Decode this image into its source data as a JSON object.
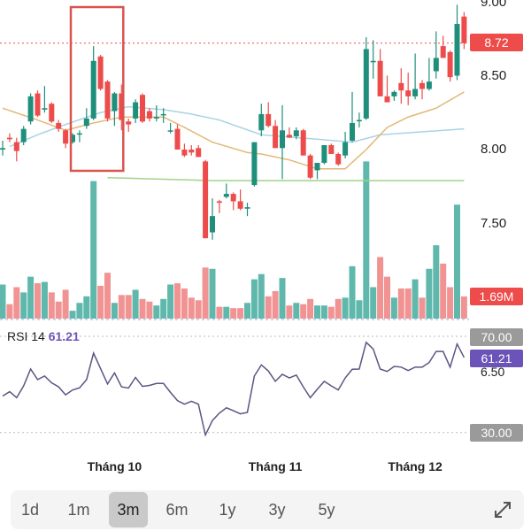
{
  "colors": {
    "up": "#1f8f7c",
    "down": "#ee4b4b",
    "vol_up": "#5fb8ab",
    "vol_down": "#f29393",
    "ma_fast": "#e3b878",
    "ma_slow": "#a9d3e6",
    "ma_long": "#9fd38a",
    "rsi": "#5b5582",
    "rsi_accent": "#6b53b8",
    "highlight_box": "#d9534f"
  },
  "chart_data": {
    "type": "candlestick",
    "price_axis": {
      "ticks": [
        "9.00",
        "8.50",
        "8.00",
        "7.50"
      ],
      "range": [
        7.3,
        9.0
      ]
    },
    "last_price": "8.72",
    "last_volume": "1.69M",
    "candles": [
      [
        8.0,
        8.06,
        7.96,
        8.01
      ],
      [
        8.08,
        8.11,
        8.05,
        8.07
      ],
      [
        8.05,
        8.08,
        7.92,
        7.99
      ],
      [
        8.05,
        8.16,
        8.03,
        8.14
      ],
      [
        8.19,
        8.38,
        8.17,
        8.36
      ],
      [
        8.38,
        8.4,
        8.22,
        8.23
      ],
      [
        8.27,
        8.43,
        8.25,
        8.28
      ],
      [
        8.31,
        8.32,
        8.18,
        8.19
      ],
      [
        8.18,
        8.2,
        8.12,
        8.14
      ],
      [
        8.13,
        8.14,
        8.01,
        8.04
      ],
      [
        8.05,
        8.11,
        8.04,
        8.1
      ],
      [
        8.11,
        8.13,
        8.05,
        8.11
      ],
      [
        8.16,
        8.28,
        8.14,
        8.21
      ],
      [
        8.21,
        8.7,
        8.2,
        8.6
      ],
      [
        8.63,
        8.64,
        8.4,
        8.41
      ],
      [
        8.46,
        8.47,
        8.19,
        8.21
      ],
      [
        8.26,
        8.39,
        8.16,
        8.38
      ],
      [
        8.38,
        8.44,
        8.13,
        8.2
      ],
      [
        8.19,
        8.21,
        8.12,
        8.17
      ],
      [
        8.21,
        8.34,
        8.18,
        8.32
      ],
      [
        8.37,
        8.38,
        8.18,
        8.19
      ],
      [
        8.26,
        8.28,
        8.19,
        8.21
      ],
      [
        8.21,
        8.3,
        8.19,
        8.22
      ],
      [
        8.24,
        8.28,
        8.18,
        8.24
      ],
      [
        8.13,
        8.18,
        8.11,
        8.13
      ],
      [
        8.14,
        8.17,
        8.0,
        8.0
      ],
      [
        8.0,
        8.04,
        7.95,
        7.96
      ],
      [
        8.0,
        8.03,
        7.96,
        7.98
      ],
      [
        8.01,
        8.03,
        7.95,
        7.95
      ],
      [
        7.92,
        7.93,
        7.4,
        7.4
      ],
      [
        7.44,
        7.67,
        7.39,
        7.55
      ],
      [
        7.65,
        7.66,
        7.57,
        7.64
      ],
      [
        7.68,
        7.77,
        7.67,
        7.7
      ],
      [
        7.7,
        7.71,
        7.59,
        7.65
      ],
      [
        7.65,
        7.73,
        7.59,
        7.6
      ],
      [
        7.6,
        7.64,
        7.55,
        7.61
      ],
      [
        7.76,
        8.05,
        7.75,
        8.05
      ],
      [
        8.13,
        8.31,
        8.09,
        8.24
      ],
      [
        8.24,
        8.32,
        8.15,
        8.16
      ],
      [
        8.16,
        8.2,
        8.01,
        8.01
      ],
      [
        8.01,
        8.3,
        7.8,
        8.13
      ],
      [
        8.1,
        8.15,
        8.08,
        8.08
      ],
      [
        8.09,
        8.15,
        8.07,
        8.13
      ],
      [
        8.13,
        8.14,
        7.96,
        7.96
      ],
      [
        7.96,
        7.97,
        7.8,
        7.81
      ],
      [
        7.86,
        7.91,
        7.8,
        7.91
      ],
      [
        7.91,
        8.03,
        7.9,
        8.03
      ],
      [
        8.03,
        8.04,
        7.97,
        7.97
      ],
      [
        7.97,
        7.98,
        7.89,
        7.9
      ],
      [
        7.96,
        8.12,
        7.94,
        8.05
      ],
      [
        8.06,
        8.39,
        8.05,
        8.18
      ],
      [
        8.2,
        8.25,
        8.15,
        8.2
      ],
      [
        8.21,
        8.76,
        8.2,
        8.68
      ],
      [
        8.6,
        8.74,
        8.48,
        8.6
      ],
      [
        8.6,
        8.68,
        8.36,
        8.36
      ],
      [
        8.36,
        8.5,
        8.32,
        8.32
      ],
      [
        8.36,
        8.4,
        8.33,
        8.39
      ],
      [
        8.45,
        8.55,
        8.31,
        8.4
      ],
      [
        8.4,
        8.52,
        8.3,
        8.36
      ],
      [
        8.36,
        8.65,
        8.34,
        8.41
      ],
      [
        8.45,
        8.47,
        8.34,
        8.41
      ],
      [
        8.41,
        8.62,
        8.4,
        8.46
      ],
      [
        8.53,
        8.8,
        8.48,
        8.62
      ],
      [
        8.7,
        8.77,
        8.62,
        8.62
      ],
      [
        8.66,
        8.67,
        8.46,
        8.49
      ],
      [
        8.5,
        8.98,
        8.47,
        8.85
      ],
      [
        8.9,
        8.93,
        8.68,
        8.72
      ]
    ],
    "volume_millions": [
      2.6,
      1.1,
      2.4,
      2.0,
      3.2,
      2.7,
      2.8,
      2.0,
      1.3,
      2.2,
      0.6,
      1.2,
      1.7,
      10.5,
      2.5,
      3.5,
      1.2,
      1.8,
      1.8,
      2.2,
      1.5,
      1.3,
      1.0,
      1.5,
      2.6,
      2.7,
      2.3,
      1.6,
      1.4,
      3.9,
      3.8,
      0.9,
      0.9,
      0.8,
      0.8,
      1.2,
      3.0,
      3.4,
      1.7,
      2.1,
      3.1,
      1.0,
      1.2,
      1.1,
      1.5,
      1.0,
      1.0,
      0.9,
      1.5,
      1.6,
      4.0,
      1.4,
      12.0,
      2.4,
      4.7,
      3.2,
      1.6,
      2.3,
      2.3,
      3.0,
      1.6,
      3.8,
      5.6,
      4.2,
      2.4,
      8.7,
      1.69
    ],
    "ma_fast_keyframes": [
      [
        0,
        8.28
      ],
      [
        5,
        8.2
      ],
      [
        9,
        8.13
      ],
      [
        13,
        8.18
      ],
      [
        17,
        8.22
      ],
      [
        23,
        8.22
      ],
      [
        26,
        8.15
      ],
      [
        30,
        8.05
      ],
      [
        35,
        7.98
      ],
      [
        37,
        7.97
      ],
      [
        41,
        7.93
      ],
      [
        45,
        7.87
      ],
      [
        49,
        7.87
      ],
      [
        52,
        8.0
      ],
      [
        55,
        8.15
      ],
      [
        58,
        8.22
      ],
      [
        62,
        8.28
      ],
      [
        66,
        8.39
      ]
    ],
    "ma_slow_keyframes": [
      [
        1,
        8.02
      ],
      [
        5,
        8.1
      ],
      [
        9,
        8.17
      ],
      [
        14,
        8.25
      ],
      [
        18,
        8.29
      ],
      [
        23,
        8.27
      ],
      [
        27,
        8.24
      ],
      [
        31,
        8.2
      ],
      [
        37,
        8.1
      ],
      [
        45,
        8.07
      ],
      [
        50,
        8.05
      ],
      [
        54,
        8.1
      ],
      [
        60,
        8.12
      ],
      [
        66,
        8.14
      ]
    ],
    "ma_long_keyframes": [
      [
        15,
        7.81
      ],
      [
        30,
        7.79
      ],
      [
        40,
        7.79
      ],
      [
        66,
        7.79
      ]
    ],
    "highlight_range": [
      10,
      17
    ],
    "x_labels": [
      "Tháng 10",
      "Tháng 11",
      "Tháng 12"
    ],
    "x_label_index": [
      16,
      39,
      59
    ],
    "rsi": {
      "title": "RSI 14",
      "value": "61.21",
      "levels": [
        "70.00",
        "30.00"
      ],
      "extra_label": "6.50",
      "values": [
        45.2,
        47.0,
        44.5,
        49.4,
        56.4,
        52.0,
        53.5,
        50.7,
        49.0,
        45.7,
        47.7,
        48.6,
        52.0,
        63.0,
        56.6,
        50.2,
        54.8,
        49.0,
        48.5,
        52.9,
        49.2,
        49.6,
        50.4,
        50.4,
        46.7,
        43.3,
        41.8,
        43.0,
        41.8,
        29.0,
        35.0,
        38.1,
        40.3,
        39.1,
        37.8,
        38.4,
        53.5,
        58.1,
        55.6,
        51.3,
        54.2,
        52.7,
        53.9,
        49.0,
        44.5,
        48.0,
        51.3,
        49.4,
        47.7,
        52.7,
        56.3,
        56.4,
        67.5,
        64.7,
        56.4,
        55.4,
        57.5,
        57.2,
        55.8,
        57.2,
        57.2,
        59.1,
        63.7,
        63.7,
        57.2,
        66.8,
        61.21
      ]
    }
  },
  "ranges": [
    {
      "label": "1d",
      "selected": false
    },
    {
      "label": "1m",
      "selected": false
    },
    {
      "label": "3m",
      "selected": true
    },
    {
      "label": "6m",
      "selected": false
    },
    {
      "label": "1y",
      "selected": false
    },
    {
      "label": "3y",
      "selected": false
    },
    {
      "label": "5y",
      "selected": false
    }
  ],
  "expand_icon": "expand-icon"
}
